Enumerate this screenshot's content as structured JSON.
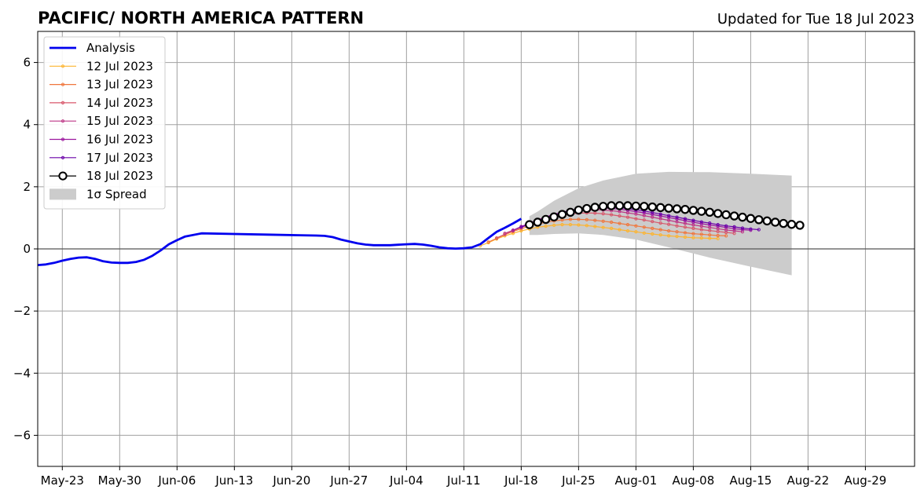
{
  "title": "PACIFIC/ NORTH AMERICA PATTERN",
  "updated": "Updated for Tue 18 Jul 2023",
  "chart_data": {
    "type": "line",
    "title": "PACIFIC/ NORTH AMERICA PATTERN",
    "subtitle": "Updated for Tue 18 Jul 2023",
    "xlabel": "",
    "ylabel": "",
    "xlim": [
      "2023-05-20",
      "2023-09-04"
    ],
    "ylim": [
      -7,
      7
    ],
    "x_ticks": [
      "2023-05-23",
      "2023-05-30",
      "2023-06-06",
      "2023-06-13",
      "2023-06-20",
      "2023-06-27",
      "2023-07-04",
      "2023-07-11",
      "2023-07-18",
      "2023-07-25",
      "2023-08-01",
      "2023-08-08",
      "2023-08-15",
      "2023-08-22",
      "2023-08-29"
    ],
    "x_tick_labels": [
      "May-23",
      "May-30",
      "Jun-06",
      "Jun-13",
      "Jun-20",
      "Jun-27",
      "Jul-04",
      "Jul-11",
      "Jul-18",
      "Jul-25",
      "Aug-01",
      "Aug-08",
      "Aug-15",
      "Aug-22",
      "Aug-29"
    ],
    "y_ticks": [
      -6,
      -4,
      -2,
      0,
      2,
      4,
      6
    ],
    "y_tick_labels": [
      "−6",
      "−4",
      "−2",
      "0",
      "2",
      "4",
      "6"
    ],
    "grid": true,
    "legend_position": "top-left",
    "analysis": {
      "name": "Analysis",
      "color": "#0000ee",
      "x": [
        "2023-05-19",
        "2023-05-20",
        "2023-05-21",
        "2023-05-22",
        "2023-05-23",
        "2023-05-24",
        "2023-05-25",
        "2023-05-26",
        "2023-05-27",
        "2023-05-28",
        "2023-05-29",
        "2023-05-30",
        "2023-05-31",
        "2023-06-01",
        "2023-06-02",
        "2023-06-03",
        "2023-06-04",
        "2023-06-05",
        "2023-06-06",
        "2023-06-07",
        "2023-06-09",
        "2023-06-13",
        "2023-06-17",
        "2023-06-21",
        "2023-06-23",
        "2023-06-24",
        "2023-06-25",
        "2023-06-26",
        "2023-06-27",
        "2023-06-28",
        "2023-06-29",
        "2023-06-30",
        "2023-07-01",
        "2023-07-02",
        "2023-07-04",
        "2023-07-05",
        "2023-07-06",
        "2023-07-07",
        "2023-07-08",
        "2023-07-09",
        "2023-07-10",
        "2023-07-11",
        "2023-07-12",
        "2023-07-13",
        "2023-07-14",
        "2023-07-15",
        "2023-07-16",
        "2023-07-17",
        "2023-07-18"
      ],
      "y": [
        -0.5,
        -0.52,
        -0.5,
        -0.45,
        -0.38,
        -0.32,
        -0.28,
        -0.27,
        -0.32,
        -0.4,
        -0.44,
        -0.45,
        -0.45,
        -0.42,
        -0.35,
        -0.22,
        -0.05,
        0.15,
        0.28,
        0.4,
        0.5,
        0.48,
        0.46,
        0.44,
        0.43,
        0.42,
        0.38,
        0.3,
        0.24,
        0.18,
        0.14,
        0.12,
        0.12,
        0.12,
        0.15,
        0.16,
        0.14,
        0.1,
        0.05,
        0.02,
        0.01,
        0.02,
        0.05,
        0.15,
        0.35,
        0.55,
        0.68,
        0.82,
        0.97
      ]
    },
    "forecasts": [
      {
        "name": "12 Jul 2023",
        "color": "#fdb42f",
        "start": "2023-07-13",
        "y": [
          0.1,
          0.2,
          0.32,
          0.42,
          0.5,
          0.58,
          0.64,
          0.7,
          0.73,
          0.76,
          0.78,
          0.78,
          0.77,
          0.75,
          0.72,
          0.69,
          0.66,
          0.62,
          0.58,
          0.55,
          0.51,
          0.48,
          0.45,
          0.42,
          0.4,
          0.38,
          0.36,
          0.35,
          0.34,
          0.33
        ]
      },
      {
        "name": "13 Jul 2023",
        "color": "#f0773d",
        "start": "2023-07-14",
        "y": [
          0.22,
          0.34,
          0.46,
          0.56,
          0.65,
          0.73,
          0.8,
          0.86,
          0.9,
          0.93,
          0.95,
          0.95,
          0.94,
          0.92,
          0.89,
          0.86,
          0.82,
          0.78,
          0.74,
          0.7,
          0.66,
          0.62,
          0.58,
          0.55,
          0.52,
          0.49,
          0.47,
          0.45,
          0.43,
          0.42
        ]
      },
      {
        "name": "14 Jul 2023",
        "color": "#d8576b",
        "start": "2023-07-15",
        "y": [
          0.35,
          0.47,
          0.58,
          0.69,
          0.79,
          0.88,
          0.96,
          1.03,
          1.08,
          1.12,
          1.15,
          1.16,
          1.15,
          1.13,
          1.1,
          1.06,
          1.02,
          0.97,
          0.93,
          0.88,
          0.83,
          0.79,
          0.74,
          0.7,
          0.66,
          0.62,
          0.59,
          0.56,
          0.53,
          0.5
        ]
      },
      {
        "name": "15 Jul 2023",
        "color": "#bd3786",
        "start": "2023-07-16",
        "y": [
          0.5,
          0.6,
          0.7,
          0.8,
          0.9,
          0.99,
          1.07,
          1.14,
          1.19,
          1.23,
          1.25,
          1.26,
          1.25,
          1.23,
          1.2,
          1.16,
          1.12,
          1.07,
          1.02,
          0.97,
          0.92,
          0.87,
          0.82,
          0.77,
          0.73,
          0.69,
          0.65,
          0.61,
          0.58,
          0.55
        ]
      },
      {
        "name": "16 Jul 2023",
        "color": "#9c179e",
        "start": "2023-07-17",
        "y": [
          0.6,
          0.72,
          0.83,
          0.93,
          1.03,
          1.11,
          1.18,
          1.24,
          1.28,
          1.31,
          1.32,
          1.32,
          1.3,
          1.28,
          1.24,
          1.2,
          1.16,
          1.11,
          1.06,
          1.01,
          0.96,
          0.91,
          0.86,
          0.81,
          0.77,
          0.73,
          0.69,
          0.65,
          0.62,
          0.6
        ]
      },
      {
        "name": "17 Jul 2023",
        "color": "#6a00a8",
        "start": "2023-07-18",
        "y": [
          0.7,
          0.8,
          0.91,
          1.0,
          1.09,
          1.17,
          1.24,
          1.29,
          1.33,
          1.35,
          1.36,
          1.35,
          1.33,
          1.3,
          1.26,
          1.22,
          1.17,
          1.12,
          1.07,
          1.02,
          0.97,
          0.92,
          0.87,
          0.83,
          0.78,
          0.74,
          0.71,
          0.67,
          0.64,
          0.62
        ]
      },
      {
        "name": "18 Jul 2023",
        "color": "#000000",
        "start": "2023-07-19",
        "y": [
          0.78,
          0.86,
          0.95,
          1.03,
          1.11,
          1.18,
          1.25,
          1.3,
          1.34,
          1.37,
          1.39,
          1.39,
          1.39,
          1.38,
          1.37,
          1.35,
          1.33,
          1.31,
          1.29,
          1.27,
          1.24,
          1.21,
          1.18,
          1.14,
          1.1,
          1.06,
          1.02,
          0.98,
          0.94,
          0.9,
          0.86,
          0.82,
          0.79,
          0.76
        ]
      }
    ],
    "spread": {
      "name": "1σ Spread",
      "color": "#cccccc",
      "x": [
        "2023-07-19",
        "2023-07-20",
        "2023-07-22",
        "2023-07-25",
        "2023-07-28",
        "2023-08-01",
        "2023-08-05",
        "2023-08-10",
        "2023-08-15",
        "2023-08-20"
      ],
      "upper": [
        1.05,
        1.2,
        1.55,
        1.95,
        2.2,
        2.42,
        2.48,
        2.47,
        2.42,
        2.36
      ],
      "lower": [
        0.45,
        0.45,
        0.48,
        0.5,
        0.45,
        0.3,
        0.05,
        -0.28,
        -0.57,
        -0.85
      ]
    }
  }
}
